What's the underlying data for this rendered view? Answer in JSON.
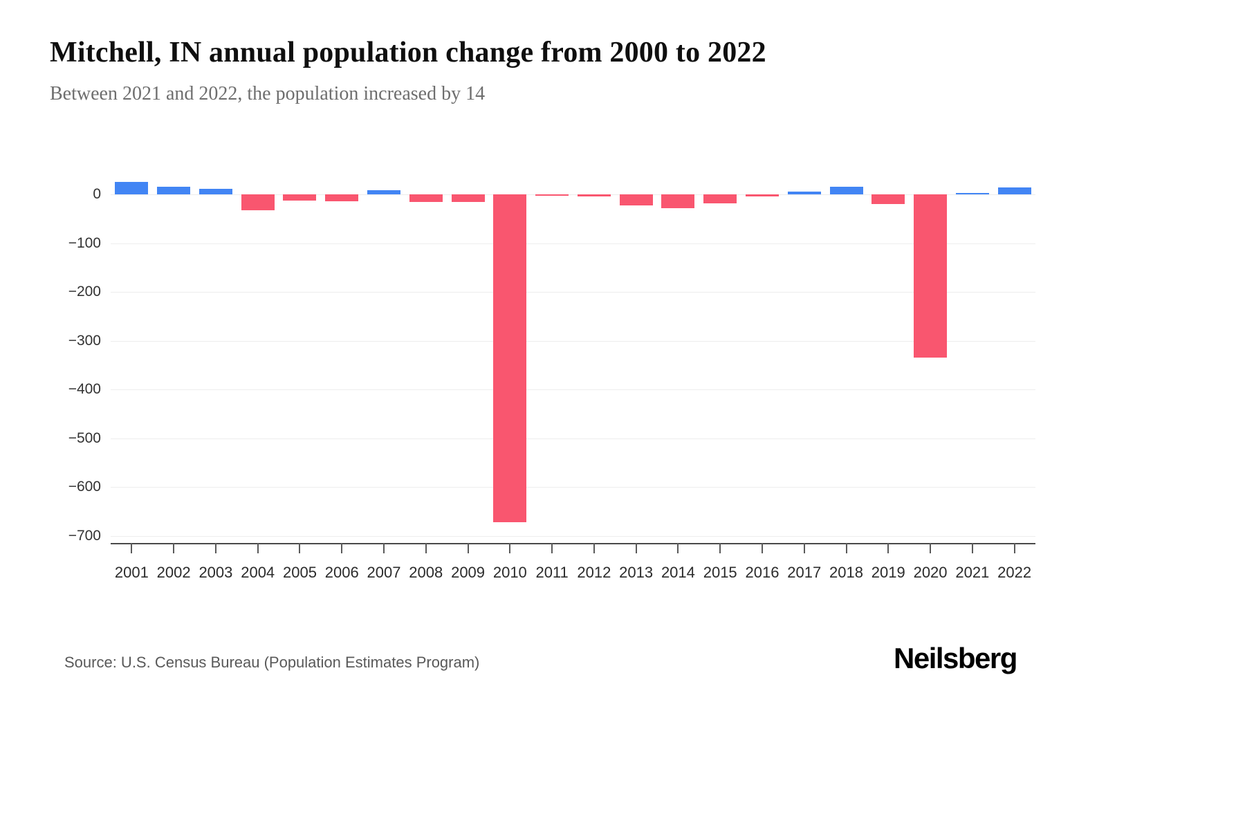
{
  "header": {
    "title": "Mitchell, IN annual population change from 2000 to 2022",
    "subtitle": "Between 2021 and 2022, the population increased by 14"
  },
  "chart_data": {
    "type": "bar",
    "title": "Mitchell, IN annual population change from 2000 to 2022",
    "xlabel": "",
    "ylabel": "",
    "categories": [
      "2001",
      "2002",
      "2003",
      "2004",
      "2005",
      "2006",
      "2007",
      "2008",
      "2009",
      "2010",
      "2011",
      "2012",
      "2013",
      "2014",
      "2015",
      "2016",
      "2017",
      "2018",
      "2019",
      "2020",
      "2021",
      "2022"
    ],
    "values": [
      25,
      16,
      12,
      -32,
      -13,
      -14,
      9,
      -15,
      -16,
      -672,
      -3,
      -4,
      -23,
      -28,
      -19,
      -4,
      5,
      16,
      -20,
      -335,
      2,
      14
    ],
    "ylim": [
      -700,
      40
    ],
    "yticks": [
      0,
      -100,
      -200,
      -300,
      -400,
      -500,
      -600,
      -700
    ],
    "grid": "horizontal",
    "legend": "none",
    "positive_color": "#4285f4",
    "negative_color": "#f9566f"
  },
  "footer": {
    "source": "Source: U.S. Census Bureau (Population Estimates Program)",
    "brand": "Neilsberg"
  }
}
